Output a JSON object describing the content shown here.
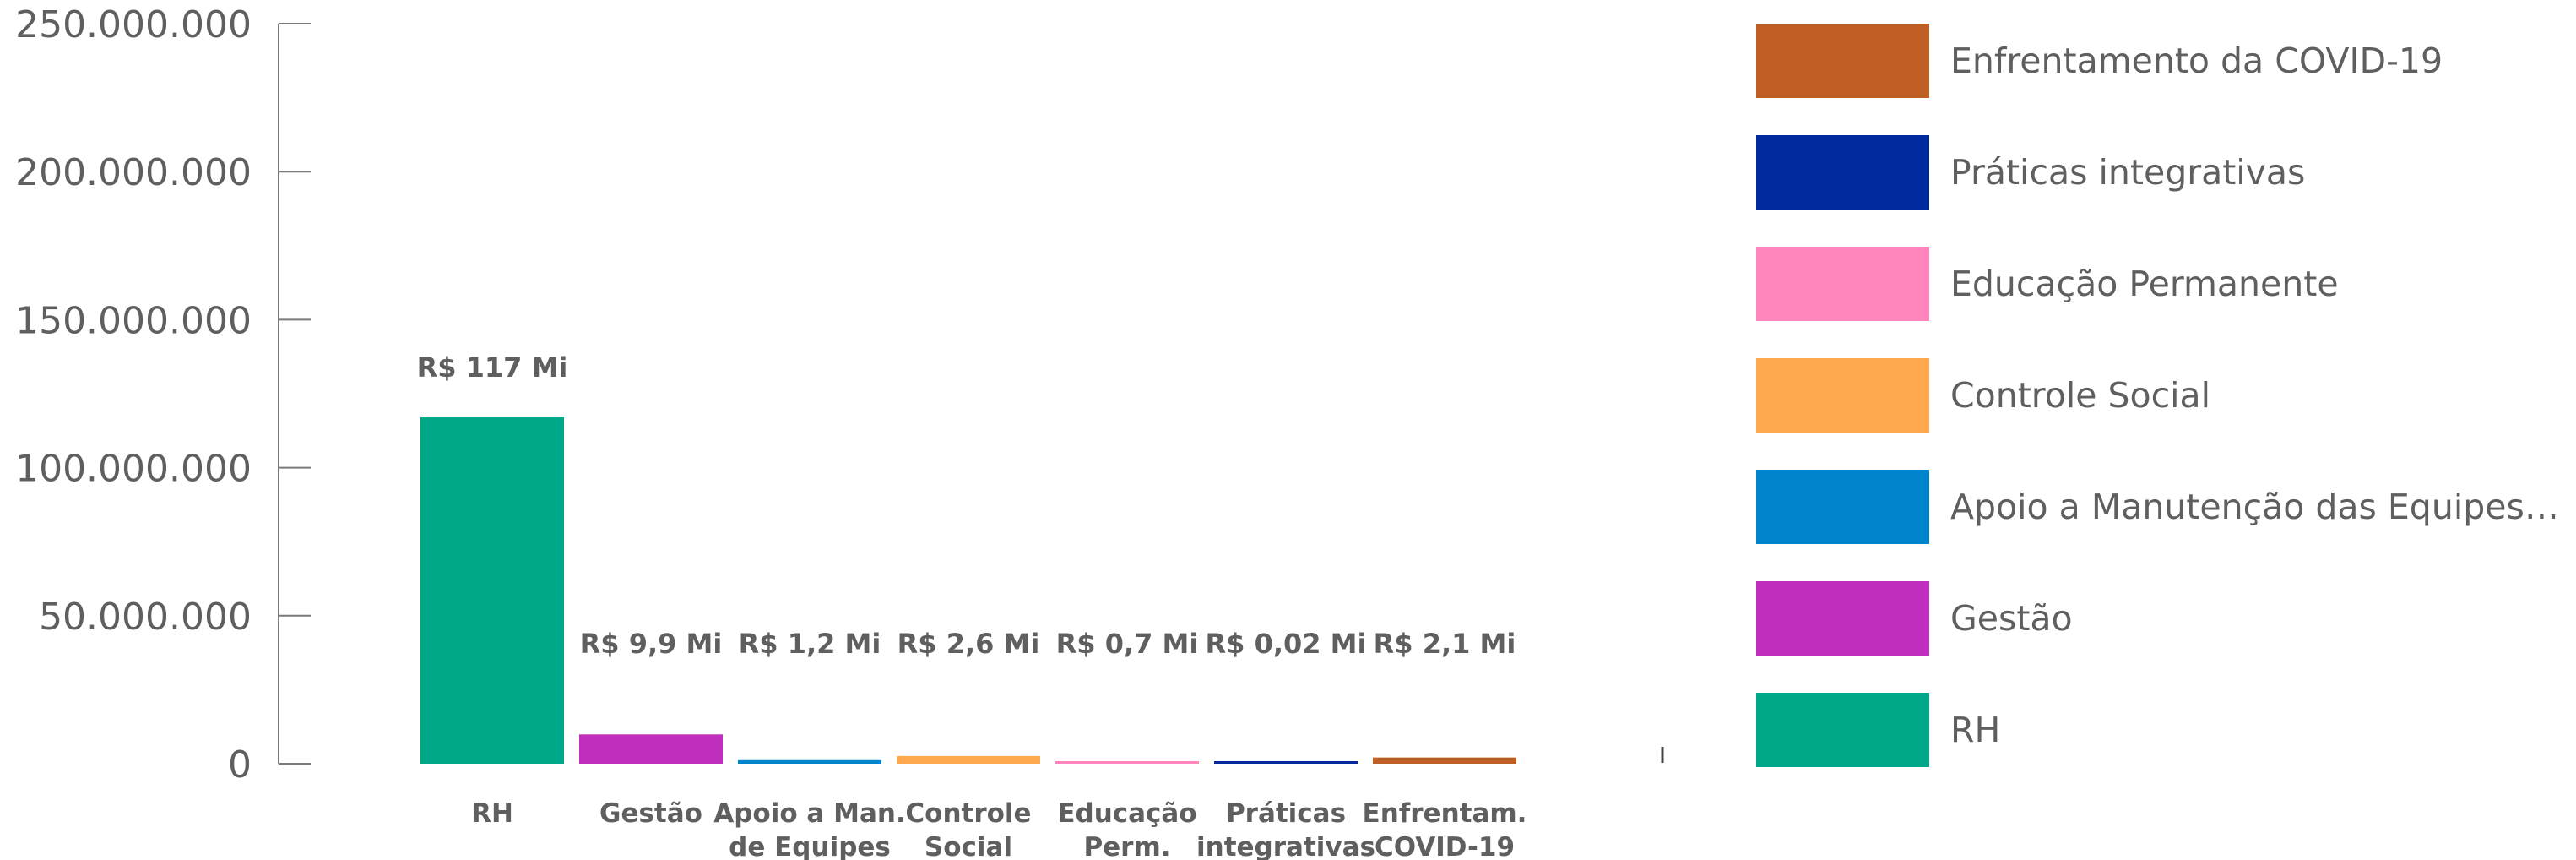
{
  "chart_data": {
    "type": "bar",
    "title": "",
    "xlabel": "",
    "ylabel": "",
    "ylim": [
      0,
      250000000
    ],
    "yticks": [
      0,
      50000000,
      100000000,
      150000000,
      200000000,
      250000000
    ],
    "ytick_labels": [
      "0",
      "50.000.000",
      "100.000.000",
      "150.000.000",
      "200.000.000",
      "250.000.000"
    ],
    "categories": [
      [
        "RH"
      ],
      [
        "Gestão"
      ],
      [
        "Apoio a Man.",
        "de Equipes"
      ],
      [
        "Controle",
        "Social"
      ],
      [
        "Educação",
        "Perm."
      ],
      [
        "Práticas",
        "integrativas"
      ],
      [
        "Enfrentam.",
        "COVID-19"
      ]
    ],
    "values": [
      117000000,
      9900000,
      1200000,
      2600000,
      700000,
      20000,
      2100000
    ],
    "data_labels": [
      "R$ 117 Mi",
      "R$ 9,9 Mi",
      "R$ 1,2 Mi",
      "R$ 2,6 Mi",
      "R$ 0,7 Mi",
      "R$ 0,02 Mi",
      "R$ 2,1 Mi"
    ],
    "colors": [
      "#00A88A",
      "#BF2EBC",
      "#0084CC",
      "#FFAA50",
      "#FF85BC",
      "#002A9E",
      "#C05F25"
    ],
    "grid": false,
    "legend_position": "right",
    "legend": [
      {
        "name": "Enfrentamento da COVID-19",
        "color": "#C05F25"
      },
      {
        "name": "Práticas integrativas",
        "color": "#002A9E"
      },
      {
        "name": "Educação Permanente",
        "color": "#FF85BC"
      },
      {
        "name": "Controle Social",
        "color": "#FFAA50"
      },
      {
        "name": "Apoio a Manutenção das Equipes de Saúde Bucal",
        "color": "#0084CC"
      },
      {
        "name": "Gestão",
        "color": "#BF2EBC"
      },
      {
        "name": "RH",
        "color": "#00A88A"
      }
    ]
  }
}
